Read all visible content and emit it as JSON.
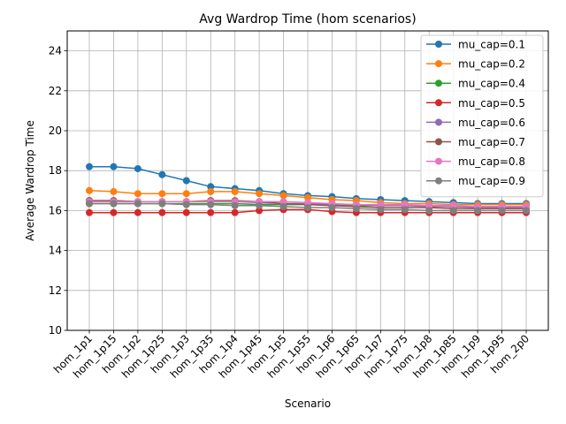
{
  "chart_data": {
    "type": "line",
    "title": "Avg Wardrop Time (hom scenarios)",
    "xlabel": "Scenario",
    "ylabel": "Average Wardrop Time",
    "ylim": [
      10,
      25
    ],
    "yticks": [
      10,
      12,
      14,
      16,
      18,
      20,
      22,
      24
    ],
    "grid": true,
    "legend_position": "top-right",
    "categories": [
      "hom_1p1",
      "hom_1p15",
      "hom_1p2",
      "hom_1p25",
      "hom_1p3",
      "hom_1p35",
      "hom_1p4",
      "hom_1p45",
      "hom_1p5",
      "hom_1p55",
      "hom_1p6",
      "hom_1p65",
      "hom_1p7",
      "hom_1p75",
      "hom_1p8",
      "hom_1p85",
      "hom_1p9",
      "hom_1p95",
      "hom_2p0"
    ],
    "series": [
      {
        "name": "mu_cap=0.1",
        "color": "#1f77b4",
        "values": [
          18.2,
          18.2,
          18.1,
          17.8,
          17.5,
          17.2,
          17.1,
          17.0,
          16.85,
          16.75,
          16.7,
          16.6,
          16.55,
          16.5,
          16.45,
          16.4,
          16.35,
          16.35,
          16.35
        ]
      },
      {
        "name": "mu_cap=0.2",
        "color": "#ff7f0e",
        "values": [
          17.0,
          16.95,
          16.85,
          16.85,
          16.85,
          16.95,
          16.95,
          16.85,
          16.75,
          16.65,
          16.55,
          16.5,
          16.4,
          16.35,
          16.35,
          16.3,
          16.3,
          16.3,
          16.3
        ]
      },
      {
        "name": "mu_cap=0.4",
        "color": "#2ca02c",
        "values": [
          16.35,
          16.35,
          16.35,
          16.35,
          16.35,
          16.35,
          16.35,
          16.3,
          16.3,
          16.3,
          16.3,
          16.25,
          16.25,
          16.25,
          16.25,
          16.2,
          16.2,
          16.2,
          16.2
        ]
      },
      {
        "name": "mu_cap=0.5",
        "color": "#d62728",
        "values": [
          15.9,
          15.9,
          15.9,
          15.9,
          15.9,
          15.9,
          15.9,
          16.0,
          16.05,
          16.05,
          15.95,
          15.9,
          15.9,
          15.9,
          15.9,
          15.9,
          15.9,
          15.9,
          15.9
        ]
      },
      {
        "name": "mu_cap=0.6",
        "color": "#9467bd",
        "values": [
          16.5,
          16.5,
          16.45,
          16.45,
          16.45,
          16.45,
          16.45,
          16.4,
          16.35,
          16.35,
          16.3,
          16.3,
          16.25,
          16.25,
          16.2,
          16.2,
          16.15,
          16.15,
          16.15
        ]
      },
      {
        "name": "mu_cap=0.7",
        "color": "#8c564b",
        "values": [
          16.5,
          16.5,
          16.45,
          16.45,
          16.45,
          16.5,
          16.5,
          16.45,
          16.35,
          16.3,
          16.25,
          16.2,
          16.15,
          16.15,
          16.15,
          16.1,
          16.1,
          16.1,
          16.1
        ]
      },
      {
        "name": "mu_cap=0.8",
        "color": "#e377c2",
        "values": [
          16.45,
          16.45,
          16.45,
          16.45,
          16.45,
          16.45,
          16.45,
          16.45,
          16.45,
          16.4,
          16.35,
          16.3,
          16.3,
          16.3,
          16.25,
          16.25,
          16.2,
          16.2,
          16.2
        ]
      },
      {
        "name": "mu_cap=0.9",
        "color": "#7f7f7f",
        "values": [
          16.35,
          16.35,
          16.35,
          16.35,
          16.3,
          16.3,
          16.25,
          16.25,
          16.2,
          16.15,
          16.15,
          16.1,
          16.05,
          16.05,
          16.0,
          16.0,
          16.0,
          16.0,
          16.0
        ]
      }
    ]
  }
}
